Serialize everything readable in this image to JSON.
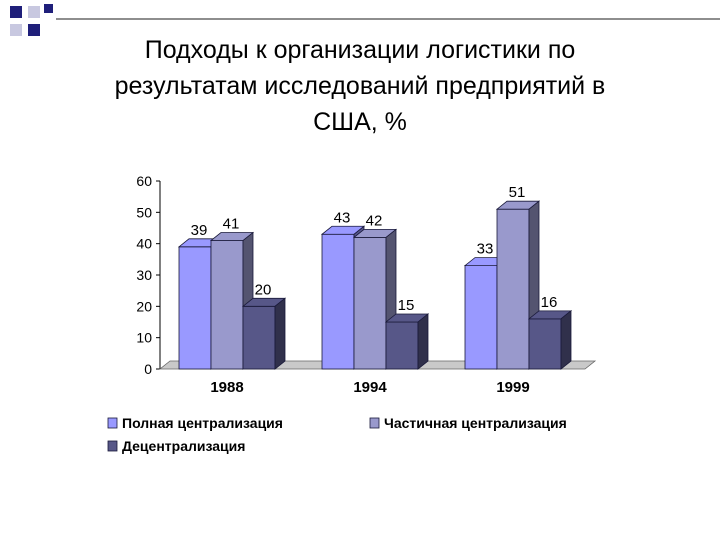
{
  "slide": {
    "title_lines": [
      "Подходы к организации логистики по",
      "результатам исследований предприятий в",
      "США, %"
    ]
  },
  "colors": {
    "series": [
      "#9999ff",
      "#9999cc",
      "#575788"
    ],
    "deco_dark": "#1f1f7a",
    "deco_light": "#c8c8e0",
    "rule": "#8e8e8e",
    "floor": "#c9c9c9"
  },
  "chart_data": {
    "type": "bar",
    "style": "3d-clustered",
    "categories": [
      "1988",
      "1994",
      "1999"
    ],
    "series": [
      {
        "name": "Полная централизация",
        "values": [
          39,
          43,
          33
        ]
      },
      {
        "name": "Частичная централизация",
        "values": [
          41,
          42,
          51
        ]
      },
      {
        "name": "Децентрализация",
        "values": [
          20,
          15,
          16
        ]
      }
    ],
    "ylim": [
      0,
      60
    ],
    "yticks": [
      "0",
      "10",
      "20",
      "30",
      "40",
      "50",
      "60"
    ],
    "data_labels": true,
    "grid": false,
    "legend_position": "bottom"
  }
}
